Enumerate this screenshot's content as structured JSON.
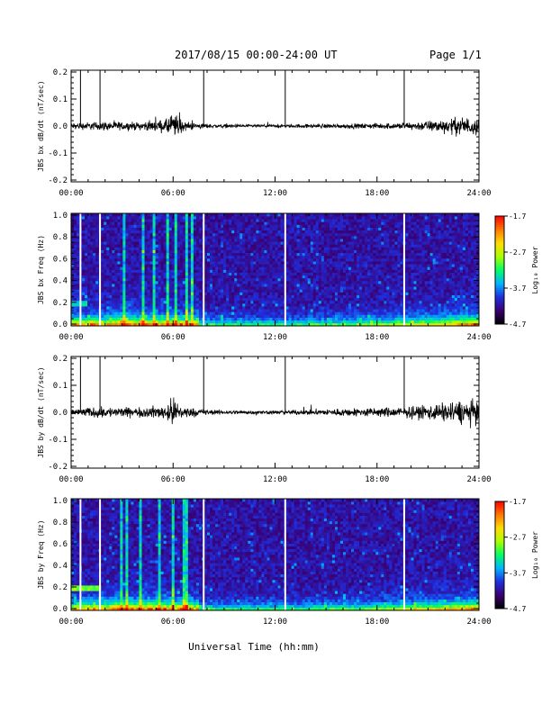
{
  "header": {
    "title": "2017/08/15  00:00-24:00 UT",
    "page": "Page 1/1"
  },
  "xaxis": {
    "ticks": [
      "00:00",
      "06:00",
      "12:00",
      "18:00",
      "24:00"
    ],
    "label": "Universal Time (hh:mm)",
    "range_hours": [
      0,
      24
    ]
  },
  "colorbar": {
    "labels": [
      "-1.7",
      "-2.7",
      "-3.7",
      "-4.7"
    ],
    "title": "Log₁₀ Power",
    "range": [
      -4.7,
      -1.7
    ],
    "colors": [
      "#000000",
      "#3a0072",
      "#1f2fe0",
      "#00b4ff",
      "#00ff66",
      "#aaff00",
      "#ffdd00",
      "#ff7700",
      "#ff0000"
    ]
  },
  "marker_times_hours": [
    0.55,
    1.7,
    7.8,
    12.6,
    19.6
  ],
  "chart_data": [
    {
      "type": "line",
      "ylabel": "JBS bx dB/dt (nT/sec)",
      "ylim": [
        -0.2,
        0.2
      ],
      "yticks": [
        "0.2",
        "0.1",
        "0.0",
        "-0.1",
        "-0.2"
      ],
      "x_hours": [
        0,
        2,
        4,
        5,
        6,
        7,
        8,
        10,
        12,
        14,
        16,
        18,
        20,
        22,
        23,
        24
      ],
      "amplitude": [
        0.008,
        0.012,
        0.01,
        0.014,
        0.02,
        0.01,
        0.006,
        0.004,
        0.004,
        0.005,
        0.006,
        0.007,
        0.01,
        0.018,
        0.024,
        0.022
      ]
    },
    {
      "type": "heatmap",
      "ylabel": "JBS bx Freq (Hz)",
      "ylim": [
        0,
        1
      ],
      "yticks": [
        "1.0",
        "0.8",
        "0.6",
        "0.4",
        "0.2",
        "0.0"
      ],
      "zlim": [
        -4.7,
        -1.7
      ]
    },
    {
      "type": "line",
      "ylabel": "JBS by dB/dt (nT/sec)",
      "ylim": [
        -0.2,
        0.2
      ],
      "yticks": [
        "0.2",
        "0.1",
        "0.0",
        "-0.1",
        "-0.2"
      ],
      "x_hours": [
        0,
        2,
        4,
        5,
        6,
        7,
        8,
        10,
        12,
        14,
        16,
        18,
        20,
        22,
        23,
        24
      ],
      "amplitude": [
        0.01,
        0.014,
        0.012,
        0.016,
        0.022,
        0.012,
        0.007,
        0.005,
        0.005,
        0.007,
        0.01,
        0.012,
        0.015,
        0.025,
        0.032,
        0.03
      ]
    },
    {
      "type": "heatmap",
      "ylabel": "JBS by Freq (Hz)",
      "ylim": [
        0,
        1
      ],
      "yticks": [
        "1.0",
        "0.8",
        "0.6",
        "0.4",
        "0.2",
        "0.0"
      ],
      "zlim": [
        -4.7,
        -1.7
      ]
    }
  ]
}
